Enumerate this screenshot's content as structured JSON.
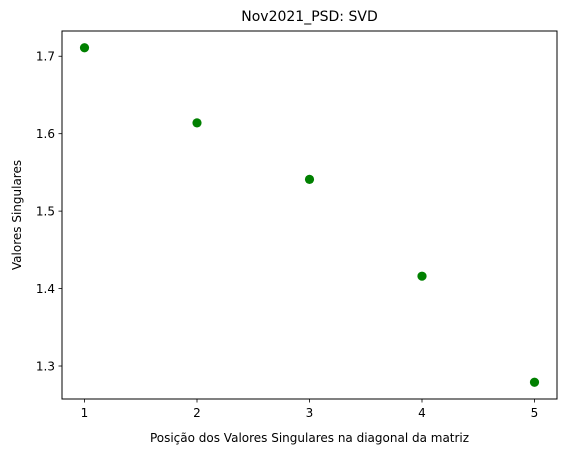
{
  "chart_data": {
    "type": "scatter",
    "title": "Nov2021_PSD: SVD",
    "xlabel": "Posição dos Valores Singulares na diagonal da matriz",
    "ylabel": "Valores Singulares",
    "x": [
      1,
      2,
      3,
      4,
      5
    ],
    "y": [
      1.711,
      1.614,
      1.541,
      1.416,
      1.279
    ],
    "xlim": [
      0.8,
      5.2
    ],
    "ylim": [
      1.2574,
      1.7326
    ],
    "xticks": [
      1,
      2,
      3,
      4,
      5
    ],
    "xtick_labels": [
      "1",
      "2",
      "3",
      "4",
      "5"
    ],
    "yticks": [
      1.3,
      1.4,
      1.5,
      1.6,
      1.7
    ],
    "ytick_labels": [
      "1.3",
      "1.4",
      "1.5",
      "1.6",
      "1.7"
    ],
    "marker_color": "#008000",
    "grid": false,
    "legend": false
  }
}
